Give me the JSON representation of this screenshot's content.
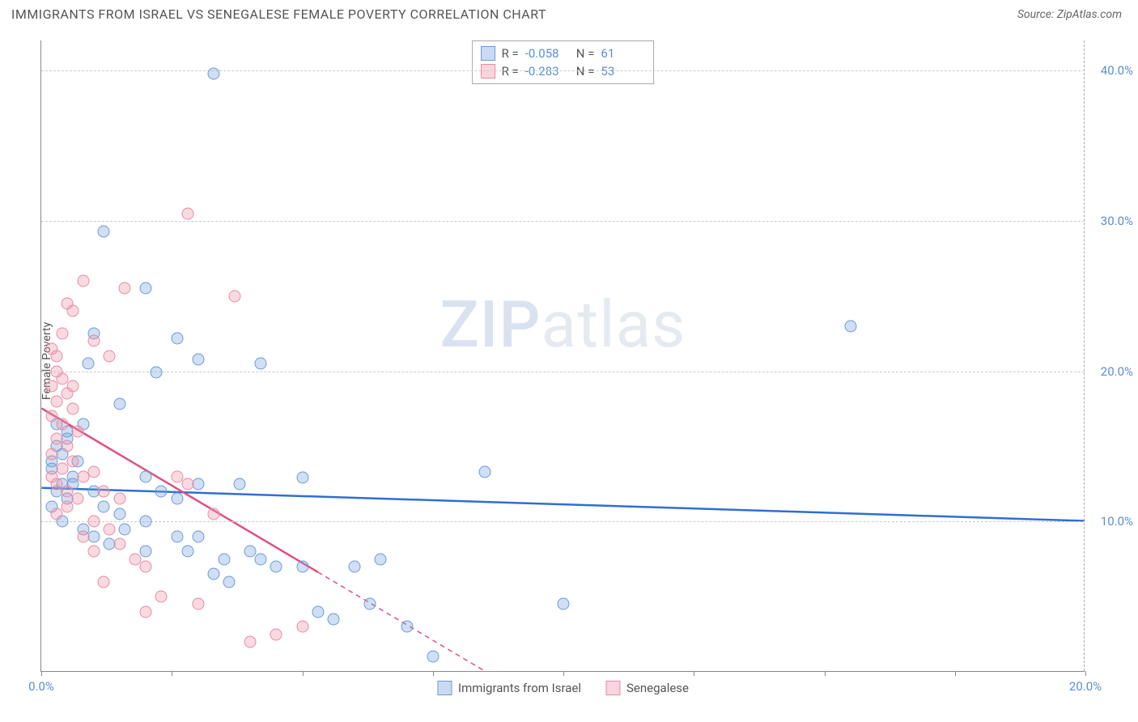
{
  "title": "IMMIGRANTS FROM ISRAEL VS SENEGALESE FEMALE POVERTY CORRELATION CHART",
  "source": "Source: ZipAtlas.com",
  "ylabel": "Female Poverty",
  "watermark_a": "ZIP",
  "watermark_b": "atlas",
  "chart": {
    "type": "scatter",
    "xlim": [
      0,
      20
    ],
    "ylim": [
      0,
      42
    ],
    "background_color": "#ffffff",
    "grid_color": "#cccccc",
    "axis_color": "#888888",
    "tick_label_color": "#5b8dd6",
    "yticks": [
      {
        "v": 10,
        "label": "10.0%"
      },
      {
        "v": 20,
        "label": "20.0%"
      },
      {
        "v": 30,
        "label": "30.0%"
      },
      {
        "v": 40,
        "label": "40.0%"
      }
    ],
    "xticks": [
      {
        "v": 0,
        "label": "0.0%"
      },
      {
        "v": 2.5,
        "label": ""
      },
      {
        "v": 5.0,
        "label": ""
      },
      {
        "v": 7.5,
        "label": ""
      },
      {
        "v": 10.0,
        "label": ""
      },
      {
        "v": 12.5,
        "label": ""
      },
      {
        "v": 15.0,
        "label": ""
      },
      {
        "v": 17.5,
        "label": ""
      },
      {
        "v": 20,
        "label": "20.0%"
      }
    ],
    "series": [
      {
        "name": "Immigrants from Israel",
        "color_fill": "rgba(121,163,220,0.35)",
        "color_stroke": "#6a9bd8",
        "trend_color": "#2f6fd0",
        "trend_width": 2.5,
        "R": "-0.058",
        "N": "61",
        "trend": {
          "x1": 0,
          "y1": 12.2,
          "x2": 20,
          "y2": 10.0,
          "dash_after_x": null
        },
        "points": [
          [
            3.3,
            39.8
          ],
          [
            1.2,
            29.3
          ],
          [
            15.5,
            23.0
          ],
          [
            2.0,
            25.5
          ],
          [
            2.6,
            22.2
          ],
          [
            0.9,
            20.5
          ],
          [
            2.2,
            19.9
          ],
          [
            3.0,
            20.8
          ],
          [
            4.2,
            20.5
          ],
          [
            1.5,
            17.8
          ],
          [
            0.3,
            16.5
          ],
          [
            0.5,
            15.5
          ],
          [
            0.4,
            14.5
          ],
          [
            0.2,
            13.5
          ],
          [
            0.6,
            13.0
          ],
          [
            0.3,
            12.0
          ],
          [
            0.5,
            11.5
          ],
          [
            1.0,
            12.0
          ],
          [
            1.2,
            11.0
          ],
          [
            1.5,
            10.5
          ],
          [
            0.2,
            11.0
          ],
          [
            0.4,
            10.0
          ],
          [
            0.8,
            9.5
          ],
          [
            1.0,
            9.0
          ],
          [
            1.3,
            8.5
          ],
          [
            1.6,
            9.5
          ],
          [
            2.0,
            10.0
          ],
          [
            2.0,
            8.0
          ],
          [
            2.3,
            12.0
          ],
          [
            2.6,
            11.5
          ],
          [
            2.6,
            9.0
          ],
          [
            2.8,
            8.0
          ],
          [
            3.0,
            12.5
          ],
          [
            3.0,
            9.0
          ],
          [
            3.3,
            6.5
          ],
          [
            3.5,
            7.5
          ],
          [
            3.6,
            6.0
          ],
          [
            4.0,
            8.0
          ],
          [
            4.2,
            7.5
          ],
          [
            4.5,
            7.0
          ],
          [
            5.0,
            12.9
          ],
          [
            5.0,
            7.0
          ],
          [
            5.3,
            4.0
          ],
          [
            5.6,
            3.5
          ],
          [
            6.0,
            7.0
          ],
          [
            6.3,
            4.5
          ],
          [
            6.5,
            7.5
          ],
          [
            7.0,
            3.0
          ],
          [
            7.5,
            1.0
          ],
          [
            8.5,
            13.3
          ],
          [
            10.0,
            4.5
          ],
          [
            1.0,
            22.5
          ],
          [
            0.7,
            14.0
          ],
          [
            0.3,
            15.0
          ],
          [
            0.5,
            16.0
          ],
          [
            0.8,
            16.5
          ],
          [
            0.4,
            12.5
          ],
          [
            0.6,
            12.5
          ],
          [
            0.2,
            14.0
          ],
          [
            3.8,
            12.5
          ],
          [
            2.0,
            13.0
          ]
        ]
      },
      {
        "name": "Senegalese",
        "color_fill": "rgba(240,150,170,0.35)",
        "color_stroke": "#e88aa5",
        "trend_color": "#e05080",
        "trend_width": 2.5,
        "R": "-0.283",
        "N": "53",
        "trend": {
          "x1": 0,
          "y1": 17.5,
          "x2": 8.5,
          "y2": 0,
          "dash_after_x": 5.3
        },
        "points": [
          [
            2.8,
            30.5
          ],
          [
            3.7,
            25.0
          ],
          [
            1.6,
            25.5
          ],
          [
            0.8,
            26.0
          ],
          [
            0.5,
            24.5
          ],
          [
            0.6,
            24.0
          ],
          [
            1.0,
            22.0
          ],
          [
            1.3,
            21.0
          ],
          [
            0.3,
            21.0
          ],
          [
            0.4,
            19.5
          ],
          [
            0.2,
            19.0
          ],
          [
            0.5,
            18.5
          ],
          [
            0.3,
            18.0
          ],
          [
            0.6,
            17.5
          ],
          [
            0.2,
            17.0
          ],
          [
            0.4,
            16.5
          ],
          [
            0.7,
            16.0
          ],
          [
            0.3,
            15.5
          ],
          [
            0.5,
            15.0
          ],
          [
            0.2,
            14.5
          ],
          [
            0.6,
            14.0
          ],
          [
            0.4,
            13.5
          ],
          [
            0.8,
            13.0
          ],
          [
            0.3,
            12.5
          ],
          [
            1.0,
            13.3
          ],
          [
            1.2,
            12.0
          ],
          [
            0.7,
            11.5
          ],
          [
            0.5,
            11.0
          ],
          [
            0.3,
            10.5
          ],
          [
            1.0,
            10.0
          ],
          [
            1.3,
            9.5
          ],
          [
            0.8,
            9.0
          ],
          [
            1.5,
            8.5
          ],
          [
            1.0,
            8.0
          ],
          [
            1.8,
            7.5
          ],
          [
            2.0,
            7.0
          ],
          [
            1.2,
            6.0
          ],
          [
            2.3,
            5.0
          ],
          [
            2.6,
            13.0
          ],
          [
            2.8,
            12.5
          ],
          [
            3.0,
            4.5
          ],
          [
            3.3,
            10.5
          ],
          [
            4.0,
            2.0
          ],
          [
            4.5,
            2.5
          ],
          [
            5.0,
            3.0
          ],
          [
            2.0,
            4.0
          ],
          [
            0.5,
            12.0
          ],
          [
            0.2,
            21.5
          ],
          [
            0.4,
            22.5
          ],
          [
            0.3,
            20.0
          ],
          [
            0.6,
            19.0
          ],
          [
            0.2,
            13.0
          ],
          [
            1.5,
            11.5
          ]
        ]
      }
    ]
  },
  "legend_top": {
    "r_label": "R =",
    "n_label": "N ="
  },
  "legend_bottom": [
    {
      "label": "Immigrants from Israel",
      "class": "sw-blue"
    },
    {
      "label": "Senegalese",
      "class": "sw-pink"
    }
  ]
}
